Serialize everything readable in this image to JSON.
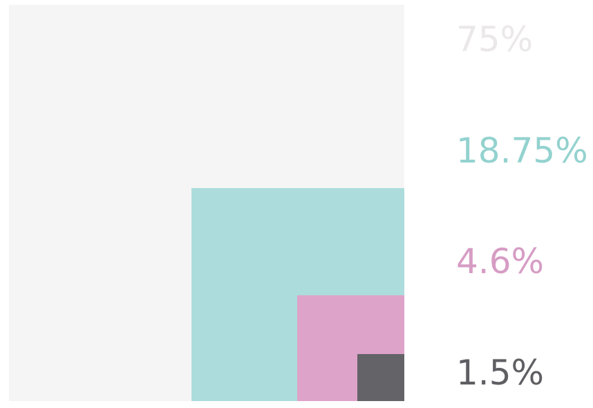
{
  "chart_data": {
    "type": "area",
    "title": "",
    "series": [
      {
        "label": "75%",
        "value": 75,
        "color": "#f5f5f5",
        "text_color": "#ebe8ea"
      },
      {
        "label": "18.75%",
        "value": 18.75,
        "color": "#acdcdc",
        "text_color": "#93d2cf"
      },
      {
        "label": "4.6%",
        "value": 4.6,
        "color": "#dea3c8",
        "text_color": "#d69cc4"
      },
      {
        "label": "1.5%",
        "value": 1.5,
        "color": "#646368",
        "text_color": "#5f5e63"
      }
    ]
  }
}
